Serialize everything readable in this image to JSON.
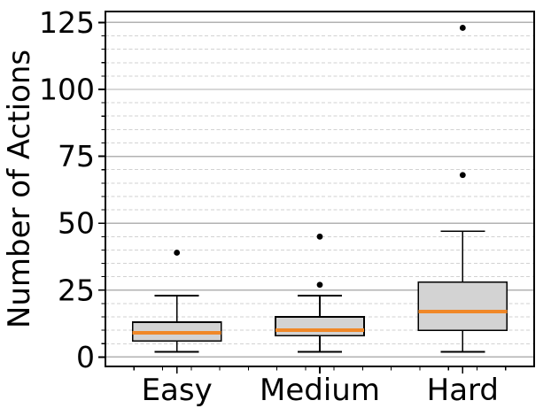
{
  "figure": {
    "background": "#ffffff"
  },
  "chart_data": {
    "type": "boxplot",
    "title": "",
    "xlabel": "",
    "ylabel": "Number of Actions",
    "categories": [
      "Easy",
      "Medium",
      "Hard"
    ],
    "series": [
      {
        "name": "Easy",
        "whisker_low": 2,
        "q1": 6,
        "median": 9,
        "q3": 13,
        "whisker_high": 23,
        "outliers": [
          39
        ]
      },
      {
        "name": "Medium",
        "whisker_low": 2,
        "q1": 8,
        "median": 10,
        "q3": 15,
        "whisker_high": 23,
        "outliers": [
          27,
          45
        ]
      },
      {
        "name": "Hard",
        "whisker_low": 2,
        "q1": 10,
        "median": 17,
        "q3": 28,
        "whisker_high": 47,
        "outliers": [
          68,
          123
        ]
      }
    ],
    "yticks": [
      0,
      25,
      50,
      75,
      100,
      125
    ],
    "ytick_labels": [
      "0",
      "25",
      "50",
      "75",
      "100",
      "125"
    ],
    "ylim": [
      -3.5,
      129.1
    ],
    "minor_y_step": 5,
    "minor_x_step": 0.2,
    "grid": {
      "major_horizontal": "solid",
      "minor_horizontal": "dashed",
      "vertical": "none"
    },
    "legend": null,
    "colors": {
      "box_fill": "#d3d3d3",
      "box_edge": "#000000",
      "median": "#f08828",
      "whisker": "#000000",
      "flier": "#000000",
      "grid_major": "#b2b2b2",
      "grid_minor": "#d2d2d2",
      "spine": "#000000",
      "text": "#000000"
    }
  }
}
